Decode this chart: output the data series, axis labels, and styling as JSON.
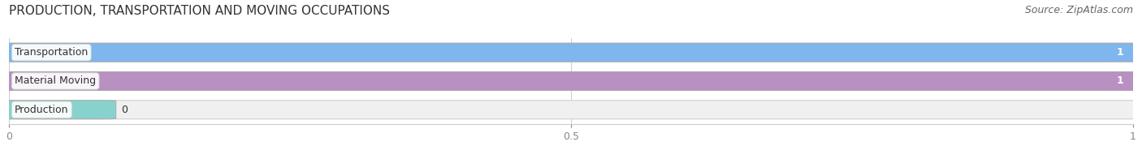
{
  "title": "PRODUCTION, TRANSPORTATION AND MOVING OCCUPATIONS",
  "source": "Source: ZipAtlas.com",
  "categories": [
    "Transportation",
    "Material Moving",
    "Production"
  ],
  "values": [
    1,
    1,
    0
  ],
  "bar_colors": [
    "#6aaced",
    "#b07fba",
    "#7dcfca"
  ],
  "bar_labels": [
    "1",
    "1",
    "0"
  ],
  "xlim": [
    0,
    1
  ],
  "xticks": [
    0,
    0.5,
    1
  ],
  "title_fontsize": 11,
  "label_fontsize": 9,
  "source_fontsize": 9,
  "bar_height": 0.62,
  "production_bar_width": 0.08
}
